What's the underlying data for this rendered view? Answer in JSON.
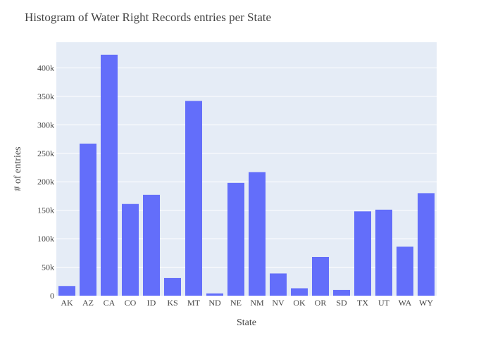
{
  "chart_data": {
    "type": "bar",
    "title": "Histogram of Water Right Records entries per State",
    "xlabel": "State",
    "ylabel": "# of entries",
    "categories": [
      "AK",
      "AZ",
      "CA",
      "CO",
      "ID",
      "KS",
      "MT",
      "ND",
      "NE",
      "NM",
      "NV",
      "OK",
      "OR",
      "SD",
      "TX",
      "UT",
      "WA",
      "WY"
    ],
    "values": [
      17000,
      267000,
      423000,
      161000,
      177000,
      31000,
      342000,
      4000,
      198000,
      217000,
      39000,
      13000,
      68000,
      10000,
      148000,
      151000,
      86000,
      180000
    ],
    "ylim": [
      0,
      445000
    ],
    "yticks": [
      0,
      50000,
      100000,
      150000,
      200000,
      250000,
      300000,
      350000,
      400000
    ],
    "ytick_labels": [
      "0",
      "50k",
      "100k",
      "150k",
      "200k",
      "250k",
      "300k",
      "350k",
      "400k"
    ],
    "grid": true,
    "colors": {
      "bar": "#636efa",
      "plot_background": "#e5ecf6",
      "gridline": "#ffffff",
      "text": "#444444"
    }
  }
}
